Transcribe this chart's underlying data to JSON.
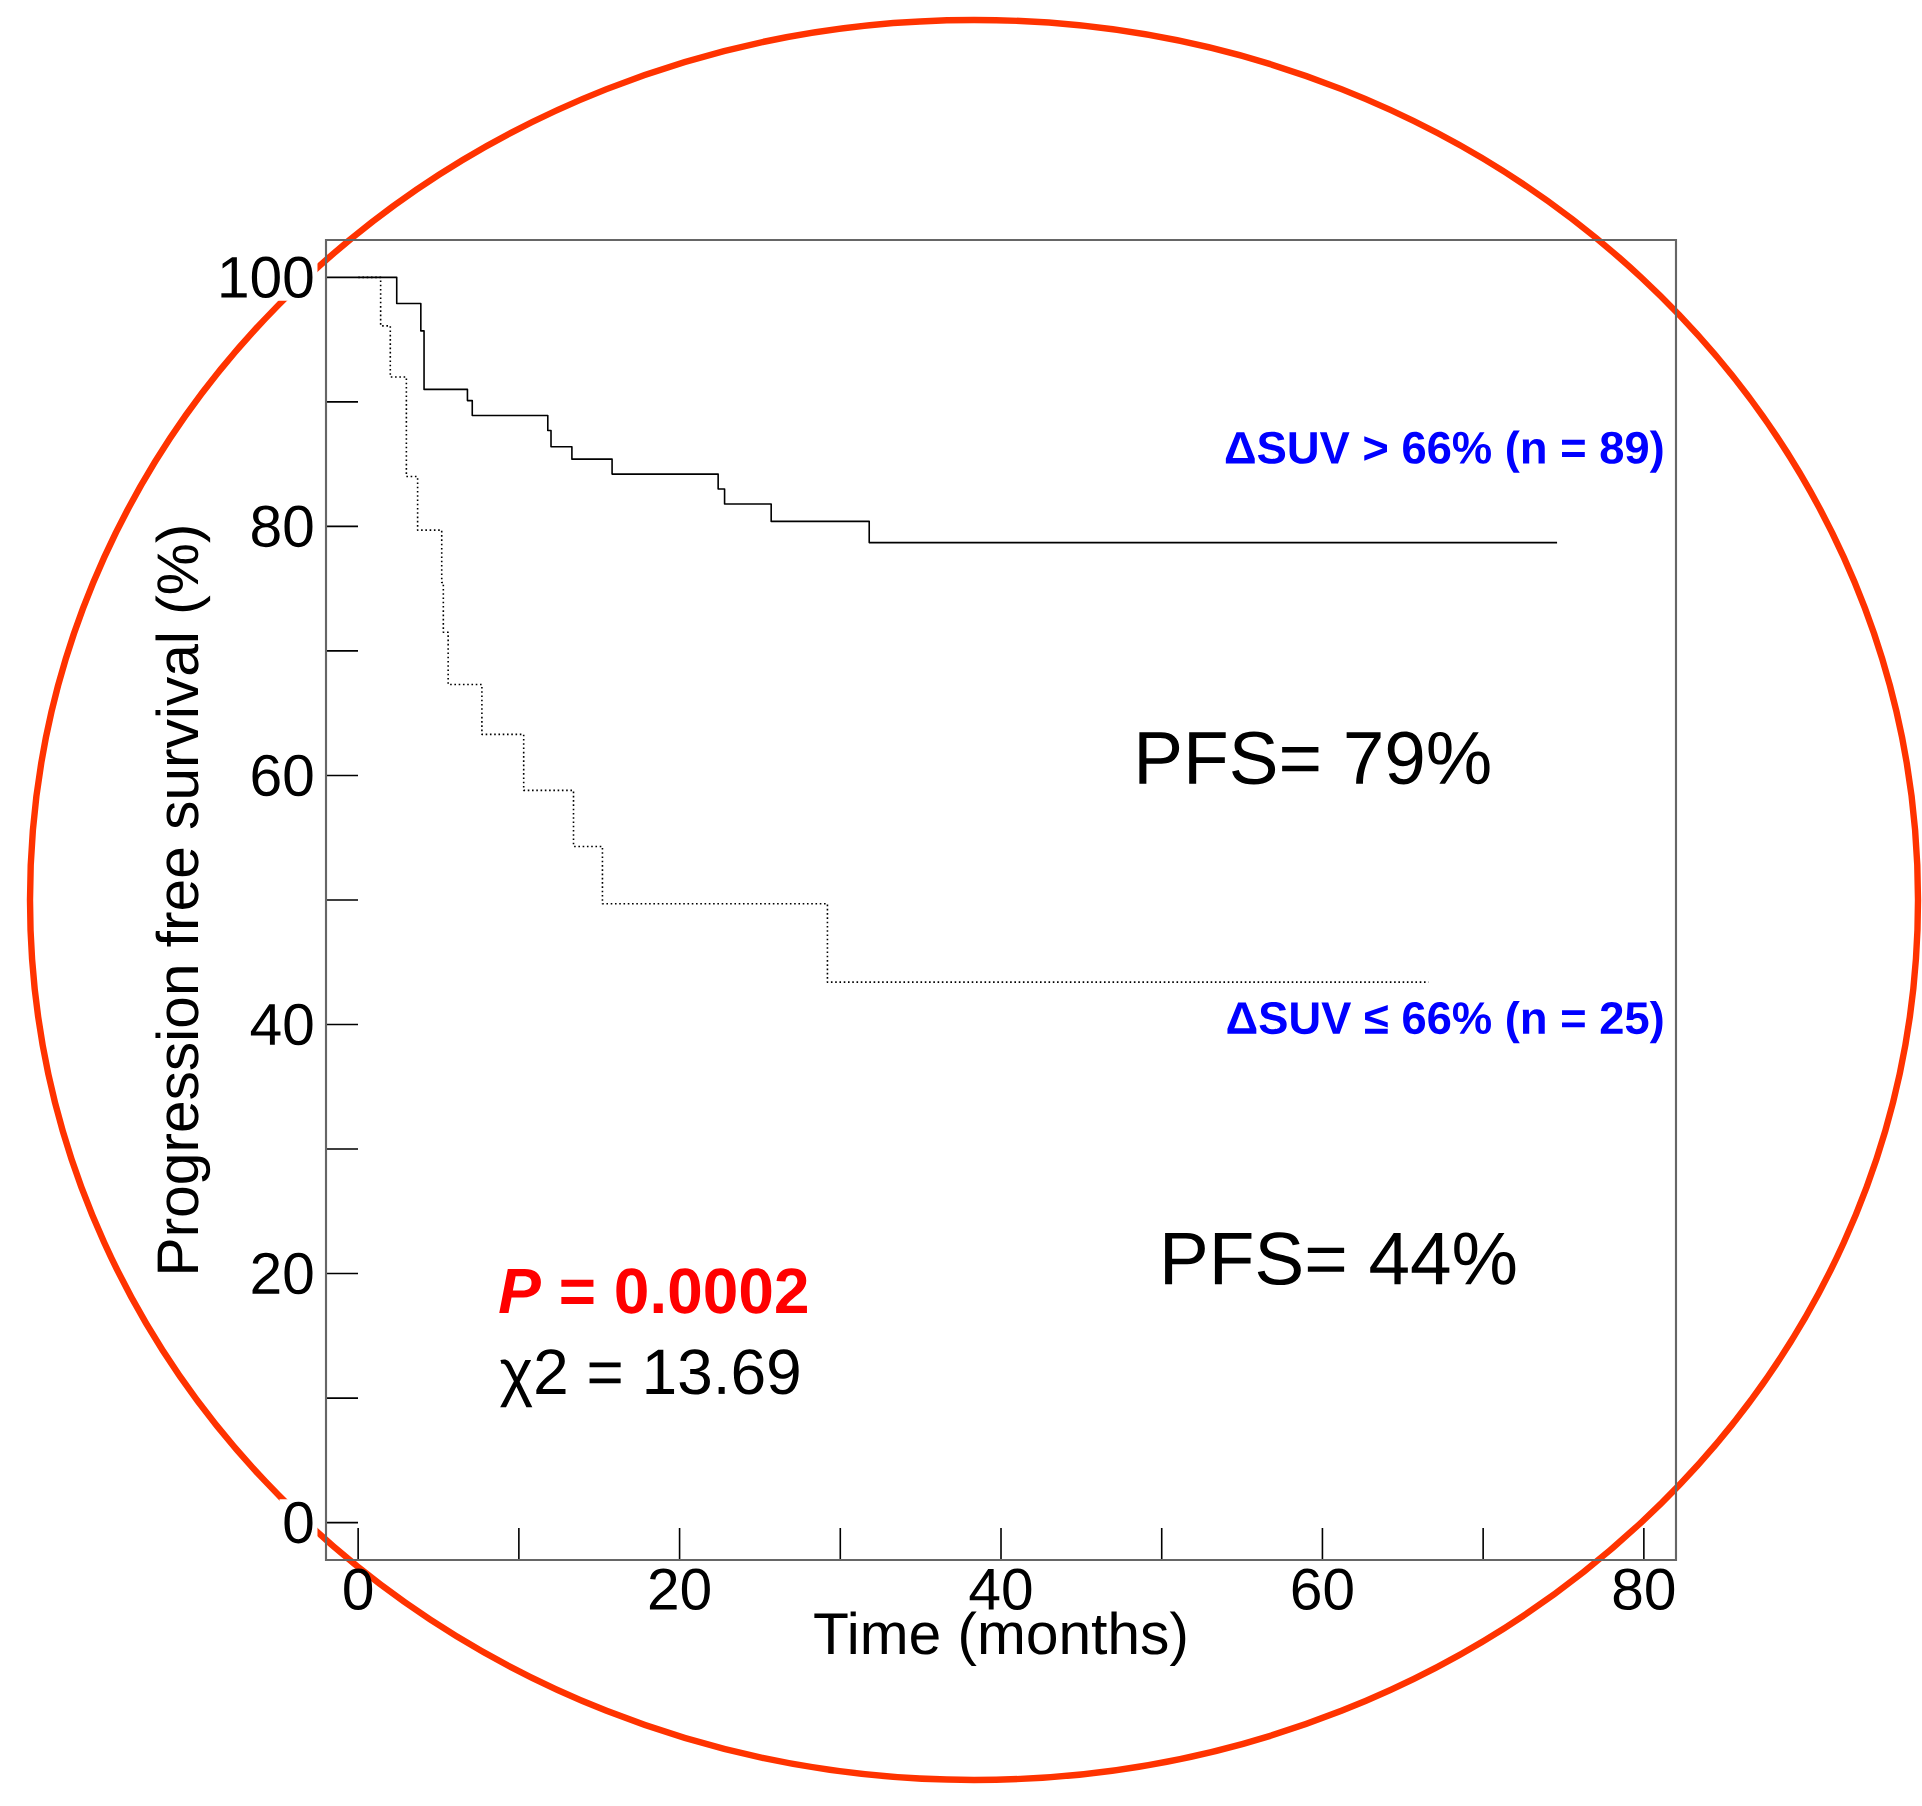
{
  "chart_data": {
    "type": "step",
    "xlabel": "Time (months)",
    "ylabel": "Progression free survival (%)",
    "xlim": [
      -2,
      82
    ],
    "ylim": [
      -3,
      103
    ],
    "xticks": [
      0,
      {
        "value": 10,
        "label": null
      },
      20,
      {
        "value": 30,
        "label": null
      },
      40,
      {
        "value": 50,
        "label": null
      },
      60,
      {
        "value": 70,
        "label": null
      },
      80
    ],
    "yticks": [
      0,
      {
        "value": 10,
        "label": null
      },
      20,
      {
        "value": 30,
        "label": null
      },
      40,
      {
        "value": 50,
        "label": null
      },
      60,
      {
        "value": 70,
        "label": null
      },
      80,
      {
        "value": 90,
        "label": null
      },
      100
    ],
    "series": [
      {
        "color": "#000000",
        "line_style": "solid",
        "x": [
          0,
          2.4,
          3.9,
          4.1,
          6.8,
          7.1,
          11.8,
          12.0,
          13.3,
          15.8,
          22.4,
          22.8,
          25.7,
          31.8,
          74.6
        ],
        "values": [
          100,
          97.9,
          95.7,
          91.0,
          90.1,
          88.9,
          87.7,
          86.4,
          85.4,
          84.2,
          83.0,
          81.8,
          80.4,
          78.7,
          78.7
        ]
      },
      {
        "color": "#000000",
        "line_style": "dotted",
        "x": [
          0,
          1.4,
          2.0,
          3.0,
          3.7,
          5.2,
          5.3,
          5.6,
          7.7,
          10.3,
          13.4,
          15.2,
          29.2,
          66.6
        ],
        "values": [
          100,
          96.1,
          92.0,
          84.0,
          79.7,
          75.5,
          71.5,
          67.3,
          63.3,
          58.8,
          54.3,
          49.7,
          43.4,
          43.4
        ]
      }
    ],
    "annotations": [
      "ΔSUV > 66% (n = 89)",
      "PFS= 79%",
      "ΔSUV ≤ 66% (n = 25)",
      "PFS= 44%",
      "*P* = 0.0002",
      "χ2 = 13.69"
    ]
  }
}
